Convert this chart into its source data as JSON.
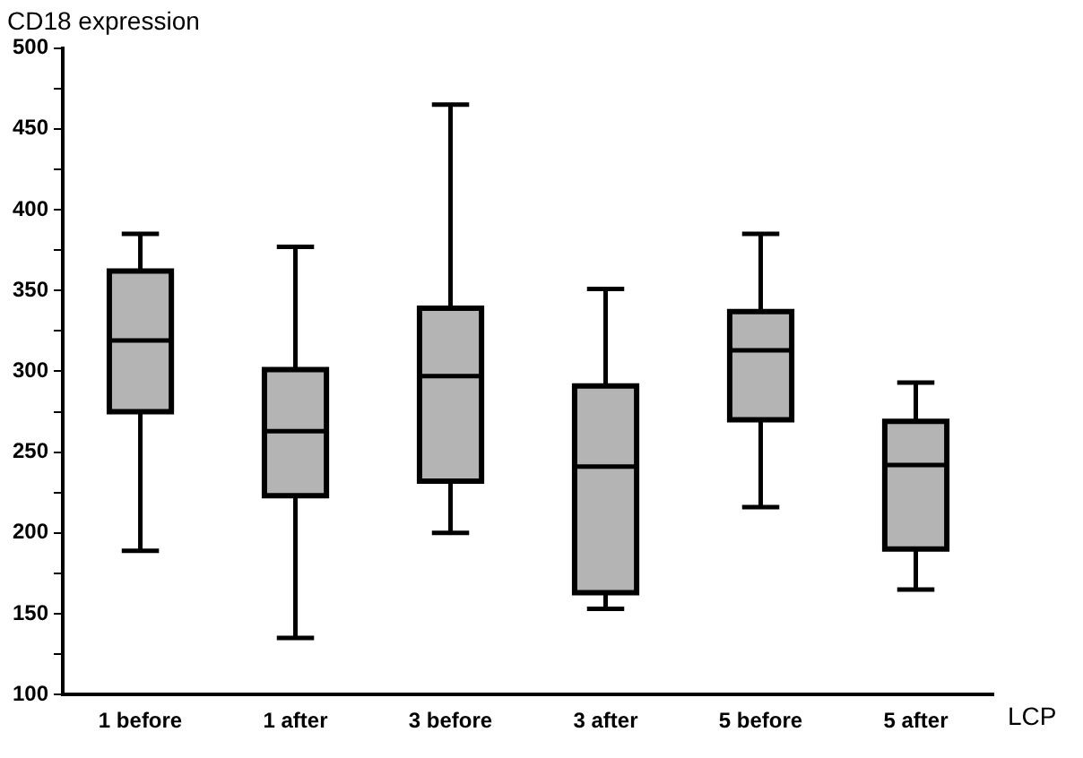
{
  "chart_data": {
    "type": "box",
    "title": "CD18 expression",
    "xlabel": "LCP",
    "categories": [
      "1 before",
      "1 after",
      "3 before",
      "3 after",
      "5 before",
      "5 after"
    ],
    "boxes": [
      {
        "low": 189,
        "q1": 275,
        "median": 319,
        "q3": 362,
        "high": 385
      },
      {
        "low": 135,
        "q1": 223,
        "median": 263,
        "q3": 301,
        "high": 377
      },
      {
        "low": 200,
        "q1": 232,
        "median": 297,
        "q3": 339,
        "high": 465
      },
      {
        "low": 153,
        "q1": 163,
        "median": 241,
        "q3": 291,
        "high": 351
      },
      {
        "low": 216,
        "q1": 270,
        "median": 313,
        "q3": 337,
        "high": 385
      },
      {
        "low": 165,
        "q1": 190,
        "median": 242,
        "q3": 269,
        "high": 293
      }
    ],
    "color": "#b4b4b4",
    "ylim": [
      100,
      500
    ],
    "yticks": [
      100,
      {
        "value": 125,
        "label": null
      },
      150,
      {
        "value": 175,
        "label": null
      },
      200,
      {
        "value": 225,
        "label": null
      },
      250,
      {
        "value": 275,
        "label": null
      },
      300,
      {
        "value": 325,
        "label": null
      },
      350,
      {
        "value": 375,
        "label": null
      },
      400,
      {
        "value": 425,
        "label": null
      },
      450,
      {
        "value": 475,
        "label": null
      },
      500
    ],
    "grid": false,
    "legend": false
  }
}
